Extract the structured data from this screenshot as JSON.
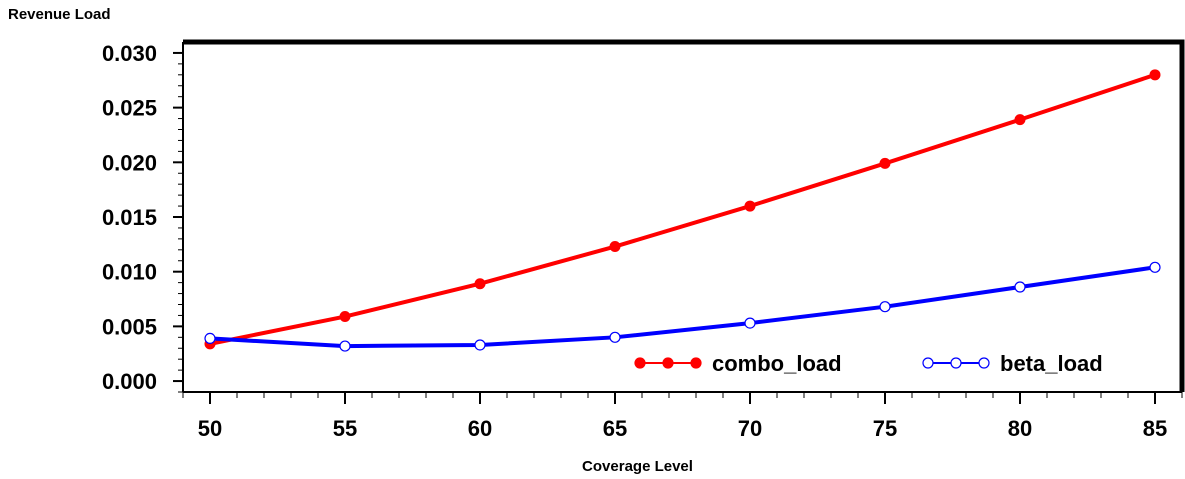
{
  "chart_data": {
    "type": "line",
    "title": "",
    "xlabel": "Coverage Level",
    "ylabel": "Revenue Load",
    "x": [
      50,
      55,
      60,
      65,
      70,
      75,
      80,
      85
    ],
    "xlim": [
      49,
      86
    ],
    "ylim": [
      -0.001,
      0.031
    ],
    "x_ticks": [
      "50",
      "55",
      "60",
      "65",
      "70",
      "75",
      "80",
      "85"
    ],
    "y_ticks": [
      "0.000",
      "0.005",
      "0.010",
      "0.015",
      "0.020",
      "0.025",
      "0.030"
    ],
    "y_tick_values": [
      0.0,
      0.005,
      0.01,
      0.015,
      0.02,
      0.025,
      0.03
    ],
    "grid": false,
    "legend_position": "bottom-right inside",
    "series": [
      {
        "name": "combo_load",
        "color": "#ff0000",
        "marker": "filled-circle",
        "values": [
          0.0034,
          0.0059,
          0.0089,
          0.0123,
          0.016,
          0.0199,
          0.0239,
          0.028
        ]
      },
      {
        "name": "beta_load",
        "color": "#0000ff",
        "marker": "open-circle",
        "values": [
          0.0039,
          0.0032,
          0.0033,
          0.004,
          0.0053,
          0.0068,
          0.0086,
          0.0104
        ]
      }
    ]
  }
}
